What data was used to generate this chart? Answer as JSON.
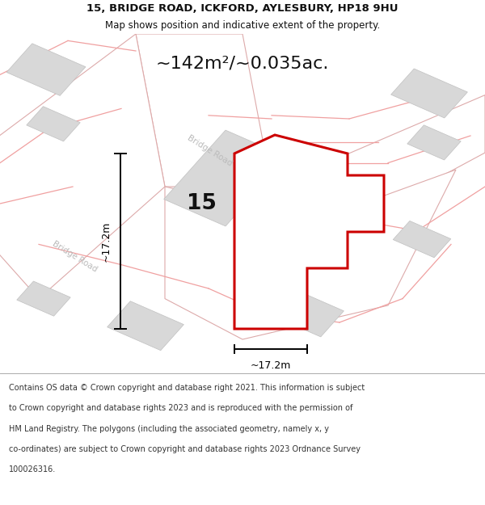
{
  "title": "15, BRIDGE ROAD, ICKFORD, AYLESBURY, HP18 9HU",
  "subtitle": "Map shows position and indicative extent of the property.",
  "area_text": "~142m²/~0.035ac.",
  "dim_v": "~17.2m",
  "dim_h": "~17.2m",
  "label": "15",
  "road_label": "Bridge Road",
  "footer_lines": [
    "Contains OS data © Crown copyright and database right 2021. This information is subject",
    "to Crown copyright and database rights 2023 and is reproduced with the permission of",
    "HM Land Registry. The polygons (including the associated geometry, namely x, y",
    "co-ordinates) are subject to Crown copyright and database rights 2023 Ordnance Survey",
    "100026316."
  ],
  "bg_color": "#ffffff",
  "road_fill": "#ffffff",
  "road_edge": "#ddaaaa",
  "building_fill": "#d8d8d8",
  "building_edge": "#c0c0c0",
  "plot_fill": "#ffffff",
  "plot_edge": "#cc0000",
  "boundary_color": "#f0a0a0",
  "road_text_color": "#bbbbbb",
  "dim_color": "#000000",
  "label_color": "#111111",
  "footer_color": "#333333",
  "title_color": "#111111",
  "rot_deg": -32
}
